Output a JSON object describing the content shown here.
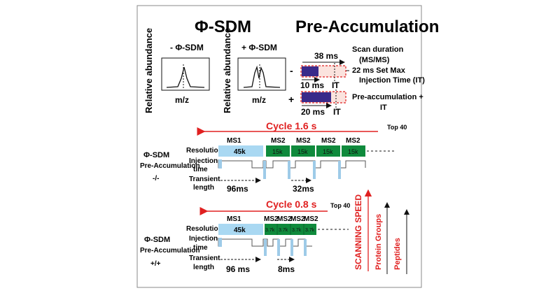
{
  "header": {
    "left_title": "Φ-SDM",
    "right_title": "Pre-Accumulation"
  },
  "spectra": {
    "y_label": "Relative abundance",
    "x_label": "m/z",
    "minus_label": "- Φ-SDM",
    "plus_label": "+ Φ-SDM"
  },
  "scan_timing": {
    "total_label": "38 ms",
    "scan_duration": [
      "Scan duration",
      "(MS/MS)"
    ],
    "max_it": [
      "22 ms Set Max",
      "Injection Time (IT)"
    ],
    "minus_sign": "-",
    "plus_sign": "+",
    "row1_fill": "10 ms",
    "row1_it": "IT",
    "row2_fill": "20 ms",
    "row2_it": "IT",
    "preaccum": [
      "Pre-accumulation +",
      "IT"
    ]
  },
  "panel_top": {
    "cycle": "Cycle 1.6 s",
    "top_n": "Top 40",
    "condition": [
      "Φ-SDM",
      "Pre-Accumulation",
      "-/-"
    ],
    "row_labels": [
      "Resolution",
      "Injection",
      "time",
      "Transient",
      "length"
    ],
    "ms1_title": "MS1",
    "ms1_res": "45k",
    "ms2_titles": [
      "MS2",
      "MS2",
      "MS2",
      "MS2"
    ],
    "ms2_res": [
      "15k",
      "15k",
      "15k",
      "15k"
    ],
    "ms1_transient": "96ms",
    "ms2_transient": "32ms"
  },
  "panel_bottom": {
    "cycle": "Cycle 0.8 s",
    "top_n": "Top 40",
    "condition": [
      "Φ-SDM",
      "Pre-Accumulation",
      "+/+"
    ],
    "row_labels": [
      "Resolution",
      "Injection",
      "time",
      "Transient",
      "length"
    ],
    "ms1_title": "MS1",
    "ms1_res": "45k",
    "ms2_titles": [
      "MS2",
      "MS2",
      "MS2",
      "MS2"
    ],
    "ms2_res": [
      "3.7k",
      "3.7k",
      "3.7k",
      "3.7k"
    ],
    "ms1_transient": "96 ms",
    "ms2_transient": "8ms"
  },
  "trends": [
    "SCANNING SPEED",
    "Protein Groups",
    "Peptides"
  ],
  "colors": {
    "red": "#e02020",
    "ms1_blue": "#a9d8f2",
    "ms2_green": "#0f8a3c",
    "navy": "#3a2a8a"
  }
}
